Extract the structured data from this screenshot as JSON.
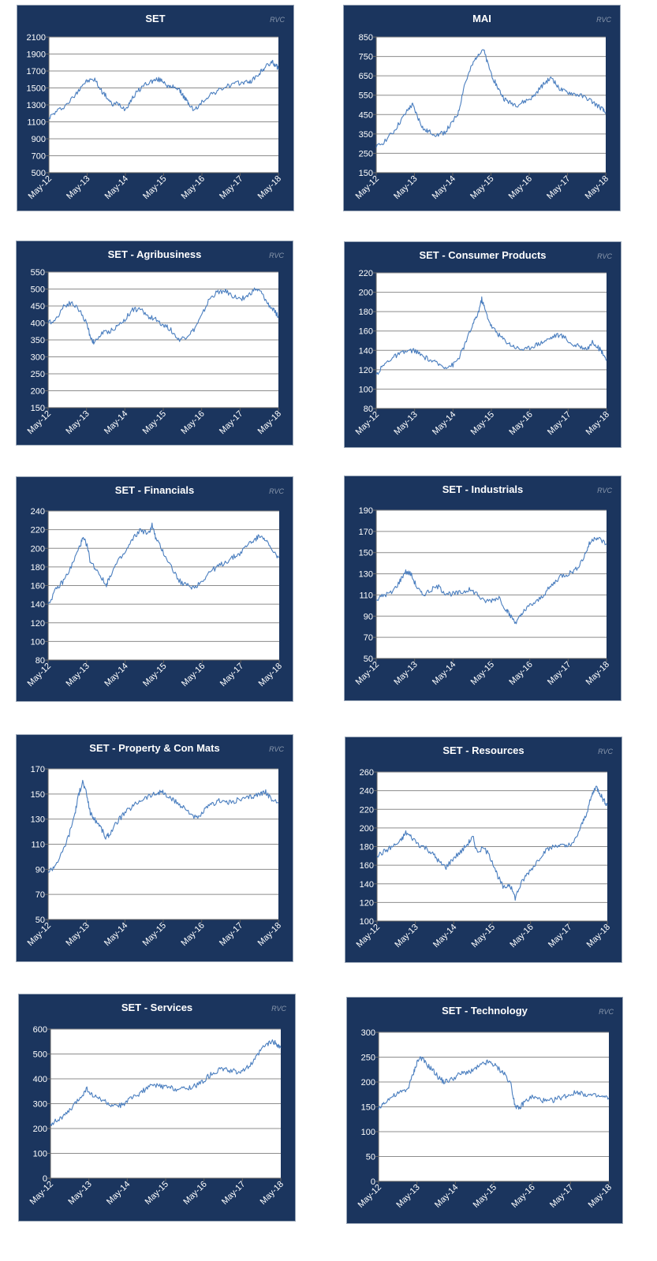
{
  "watermark": "RVC",
  "colors": {
    "panel": "#1b355e",
    "line": "#4a7ebf",
    "grid": "#8c8c8c",
    "plot": "#ffffff",
    "text": "#ffffff"
  },
  "chart_data": [
    {
      "type": "line",
      "title": "SET",
      "categories": [
        "May-12",
        "May-13",
        "May-14",
        "May-15",
        "May-16",
        "May-17",
        "May-18"
      ],
      "ylim": [
        500,
        2100
      ],
      "yticks": [
        500,
        700,
        900,
        1100,
        1300,
        1500,
        1700,
        1900,
        2100
      ],
      "grid": true,
      "series": [
        {
          "x": [
            0,
            0.2,
            0.45,
            0.7,
            0.85,
            1.0,
            1.2,
            1.35,
            1.5,
            1.65,
            1.8,
            2.0,
            2.15,
            2.3,
            2.5,
            2.7,
            2.85,
            3.0,
            3.15,
            3.3,
            3.45,
            3.55,
            3.65,
            3.8,
            4.0,
            4.2,
            4.4,
            4.6,
            4.8,
            5.0,
            5.15,
            5.3,
            5.5,
            5.6,
            5.75,
            5.85,
            5.95,
            6.0
          ],
          "values": [
            1150,
            1220,
            1300,
            1420,
            1530,
            1580,
            1600,
            1480,
            1400,
            1300,
            1320,
            1250,
            1360,
            1450,
            1540,
            1580,
            1600,
            1580,
            1500,
            1520,
            1450,
            1380,
            1320,
            1230,
            1330,
            1420,
            1460,
            1510,
            1540,
            1560,
            1570,
            1580,
            1670,
            1720,
            1780,
            1800,
            1760,
            1720
          ]
        }
      ]
    },
    {
      "type": "line",
      "title": "MAI",
      "categories": [
        "May-12",
        "May-13",
        "May-14",
        "May-15",
        "May-16",
        "May-17",
        "May-18"
      ],
      "ylim": [
        150,
        850
      ],
      "yticks": [
        150,
        250,
        350,
        450,
        550,
        650,
        750,
        850
      ],
      "grid": true,
      "series": [
        {
          "x": [
            0,
            0.2,
            0.45,
            0.65,
            0.85,
            0.95,
            1.1,
            1.25,
            1.4,
            1.6,
            1.8,
            2.0,
            2.15,
            2.3,
            2.5,
            2.65,
            2.8,
            2.9,
            3.05,
            3.2,
            3.35,
            3.5,
            3.7,
            3.9,
            4.1,
            4.3,
            4.45,
            4.6,
            4.75,
            4.9,
            5.1,
            5.3,
            5.55,
            5.75,
            5.9,
            6.0
          ],
          "values": [
            280,
            310,
            360,
            420,
            480,
            500,
            430,
            370,
            360,
            345,
            360,
            410,
            460,
            600,
            700,
            760,
            790,
            720,
            640,
            580,
            530,
            510,
            500,
            520,
            540,
            590,
            620,
            640,
            590,
            570,
            560,
            550,
            530,
            500,
            480,
            455
          ]
        }
      ]
    },
    {
      "type": "line",
      "title": "SET - Agribusiness",
      "categories": [
        "May-12",
        "May-13",
        "May-14",
        "May-15",
        "May-16",
        "May-17",
        "May-18"
      ],
      "ylim": [
        150,
        550
      ],
      "yticks": [
        150,
        200,
        250,
        300,
        350,
        400,
        450,
        500,
        550
      ],
      "grid": true,
      "series": [
        {
          "x": [
            0,
            0.2,
            0.4,
            0.6,
            0.8,
            1.0,
            1.1,
            1.2,
            1.4,
            1.6,
            1.8,
            2.0,
            2.2,
            2.4,
            2.6,
            2.8,
            3.0,
            3.2,
            3.4,
            3.6,
            3.8,
            4.0,
            4.2,
            4.4,
            4.6,
            4.8,
            5.0,
            5.2,
            5.4,
            5.55,
            5.7,
            5.85,
            6.0
          ],
          "values": [
            400,
            410,
            450,
            460,
            440,
            400,
            360,
            340,
            370,
            375,
            390,
            410,
            440,
            440,
            420,
            410,
            395,
            380,
            350,
            360,
            380,
            420,
            470,
            490,
            495,
            480,
            470,
            480,
            500,
            490,
            460,
            440,
            420
          ]
        }
      ]
    },
    {
      "type": "line",
      "title": "SET - Consumer Products",
      "categories": [
        "May-12",
        "May-13",
        "May-14",
        "May-15",
        "May-16",
        "May-17",
        "May-18"
      ],
      "ylim": [
        80,
        220
      ],
      "yticks": [
        80,
        100,
        120,
        140,
        160,
        180,
        200,
        220
      ],
      "grid": true,
      "series": [
        {
          "x": [
            0,
            0.2,
            0.4,
            0.6,
            0.8,
            1.0,
            1.2,
            1.4,
            1.6,
            1.8,
            2.0,
            2.15,
            2.3,
            2.5,
            2.65,
            2.75,
            2.85,
            3.0,
            3.15,
            3.3,
            3.5,
            3.7,
            3.9,
            4.1,
            4.3,
            4.5,
            4.7,
            4.9,
            5.1,
            5.3,
            5.5,
            5.65,
            5.8,
            5.9,
            6.0
          ],
          "values": [
            115,
            125,
            132,
            136,
            139,
            140,
            134,
            130,
            126,
            123,
            125,
            132,
            145,
            165,
            178,
            193,
            180,
            165,
            158,
            152,
            146,
            142,
            141,
            145,
            148,
            152,
            156,
            154,
            146,
            144,
            142,
            149,
            142,
            138,
            130
          ]
        }
      ]
    },
    {
      "type": "line",
      "title": "SET - Financials",
      "categories": [
        "May-12",
        "May-13",
        "May-14",
        "May-15",
        "May-16",
        "May-17",
        "May-18"
      ],
      "ylim": [
        80,
        240
      ],
      "yticks": [
        80,
        100,
        120,
        140,
        160,
        180,
        200,
        220,
        240
      ],
      "grid": true,
      "series": [
        {
          "x": [
            0,
            0.2,
            0.4,
            0.6,
            0.8,
            0.9,
            1.0,
            1.1,
            1.3,
            1.5,
            1.6,
            1.8,
            2.0,
            2.2,
            2.4,
            2.6,
            2.7,
            2.8,
            3.0,
            3.2,
            3.4,
            3.6,
            3.8,
            4.0,
            4.2,
            4.4,
            4.6,
            4.8,
            5.0,
            5.2,
            5.4,
            5.55,
            5.7,
            5.85,
            6.0
          ],
          "values": [
            140,
            155,
            165,
            180,
            200,
            210,
            205,
            185,
            175,
            160,
            170,
            185,
            195,
            210,
            220,
            215,
            225,
            210,
            195,
            180,
            165,
            160,
            158,
            165,
            175,
            180,
            185,
            190,
            195,
            205,
            210,
            215,
            205,
            195,
            190
          ]
        }
      ]
    },
    {
      "type": "line",
      "title": "SET - Industrials",
      "categories": [
        "May-12",
        "May-13",
        "May-14",
        "May-15",
        "May-16",
        "May-17",
        "May-18"
      ],
      "ylim": [
        50,
        190
      ],
      "yticks": [
        50,
        70,
        90,
        110,
        130,
        150,
        170,
        190
      ],
      "grid": true,
      "series": [
        {
          "x": [
            0,
            0.2,
            0.4,
            0.6,
            0.75,
            0.9,
            1.05,
            1.2,
            1.4,
            1.6,
            1.8,
            2.0,
            2.2,
            2.4,
            2.6,
            2.8,
            3.0,
            3.2,
            3.4,
            3.5,
            3.65,
            3.8,
            4.0,
            4.2,
            4.4,
            4.6,
            4.8,
            5.0,
            5.2,
            5.4,
            5.55,
            5.7,
            5.85,
            6.0
          ],
          "values": [
            105,
            110,
            112,
            122,
            132,
            130,
            118,
            110,
            114,
            118,
            112,
            111,
            112,
            115,
            112,
            104,
            105,
            108,
            95,
            90,
            84,
            92,
            100,
            104,
            112,
            120,
            128,
            130,
            134,
            145,
            158,
            165,
            162,
            158
          ]
        }
      ]
    },
    {
      "type": "line",
      "title": "SET - Property & Con Mats",
      "categories": [
        "May-12",
        "May-13",
        "May-14",
        "May-15",
        "May-16",
        "May-17",
        "May-18"
      ],
      "ylim": [
        50,
        170
      ],
      "yticks": [
        50,
        70,
        90,
        110,
        130,
        150,
        170
      ],
      "grid": true,
      "series": [
        {
          "x": [
            0,
            0.15,
            0.35,
            0.55,
            0.7,
            0.8,
            0.9,
            1.0,
            1.1,
            1.2,
            1.35,
            1.5,
            1.6,
            1.8,
            2.0,
            2.2,
            2.4,
            2.6,
            2.8,
            2.95,
            3.1,
            3.3,
            3.5,
            3.7,
            3.9,
            4.1,
            4.3,
            4.5,
            4.7,
            4.9,
            5.1,
            5.3,
            5.5,
            5.65,
            5.8,
            6.0
          ],
          "values": [
            88,
            92,
            102,
            118,
            135,
            150,
            160,
            150,
            135,
            130,
            125,
            115,
            118,
            128,
            135,
            140,
            145,
            148,
            150,
            152,
            148,
            144,
            140,
            135,
            130,
            138,
            142,
            145,
            143,
            145,
            146,
            148,
            150,
            152,
            146,
            143
          ]
        }
      ]
    },
    {
      "type": "line",
      "title": "SET - Resources",
      "categories": [
        "May-12",
        "May-13",
        "May-14",
        "May-15",
        "May-16",
        "May-17",
        "May-18"
      ],
      "ylim": [
        100,
        260
      ],
      "yticks": [
        100,
        120,
        140,
        160,
        180,
        200,
        220,
        240,
        260
      ],
      "grid": true,
      "series": [
        {
          "x": [
            0,
            0.2,
            0.4,
            0.6,
            0.75,
            0.9,
            1.1,
            1.3,
            1.5,
            1.65,
            1.8,
            2.0,
            2.2,
            2.4,
            2.5,
            2.6,
            2.8,
            3.0,
            3.15,
            3.3,
            3.45,
            3.6,
            3.75,
            3.9,
            4.1,
            4.3,
            4.5,
            4.7,
            4.9,
            5.1,
            5.3,
            5.45,
            5.6,
            5.7,
            5.8,
            5.9,
            6.0
          ],
          "values": [
            170,
            175,
            180,
            185,
            195,
            190,
            182,
            178,
            170,
            162,
            158,
            168,
            175,
            185,
            190,
            175,
            178,
            165,
            148,
            135,
            140,
            125,
            140,
            150,
            160,
            172,
            178,
            182,
            180,
            182,
            200,
            215,
            235,
            245,
            238,
            230,
            225
          ]
        }
      ]
    },
    {
      "type": "line",
      "title": "SET - Services",
      "categories": [
        "May-12",
        "May-13",
        "May-14",
        "May-15",
        "May-16",
        "May-17",
        "May-18"
      ],
      "ylim": [
        0,
        600
      ],
      "yticks": [
        0,
        100,
        200,
        300,
        400,
        500,
        600
      ],
      "grid": true,
      "series": [
        {
          "x": [
            0,
            0.2,
            0.4,
            0.6,
            0.8,
            0.95,
            1.1,
            1.3,
            1.5,
            1.7,
            1.9,
            2.1,
            2.3,
            2.5,
            2.7,
            2.9,
            3.1,
            3.3,
            3.5,
            3.7,
            3.9,
            4.1,
            4.3,
            4.5,
            4.7,
            4.9,
            5.1,
            5.3,
            5.5,
            5.65,
            5.8,
            5.9,
            6.0
          ],
          "values": [
            220,
            235,
            255,
            290,
            330,
            360,
            330,
            320,
            300,
            285,
            300,
            320,
            340,
            360,
            375,
            370,
            365,
            360,
            360,
            370,
            380,
            410,
            430,
            440,
            430,
            430,
            440,
            470,
            520,
            540,
            550,
            540,
            525
          ]
        }
      ]
    },
    {
      "type": "line",
      "title": "SET - Technology",
      "categories": [
        "May-12",
        "May-13",
        "May-14",
        "May-15",
        "May-16",
        "May-17",
        "May-18"
      ],
      "ylim": [
        0,
        300
      ],
      "yticks": [
        0,
        50,
        100,
        150,
        200,
        250,
        300
      ],
      "grid": true,
      "series": [
        {
          "x": [
            0,
            0.15,
            0.35,
            0.55,
            0.75,
            0.9,
            1.0,
            1.1,
            1.25,
            1.4,
            1.55,
            1.7,
            1.9,
            2.1,
            2.3,
            2.5,
            2.7,
            2.85,
            3.0,
            3.15,
            3.3,
            3.45,
            3.55,
            3.65,
            3.8,
            4.0,
            4.2,
            4.4,
            4.6,
            4.8,
            5.0,
            5.2,
            5.4,
            5.6,
            5.8,
            6.0
          ],
          "values": [
            145,
            160,
            170,
            178,
            185,
            215,
            240,
            250,
            235,
            225,
            210,
            200,
            205,
            215,
            220,
            225,
            235,
            240,
            235,
            225,
            215,
            195,
            155,
            145,
            160,
            170,
            165,
            160,
            165,
            170,
            175,
            180,
            175,
            172,
            170,
            168
          ]
        }
      ]
    }
  ]
}
